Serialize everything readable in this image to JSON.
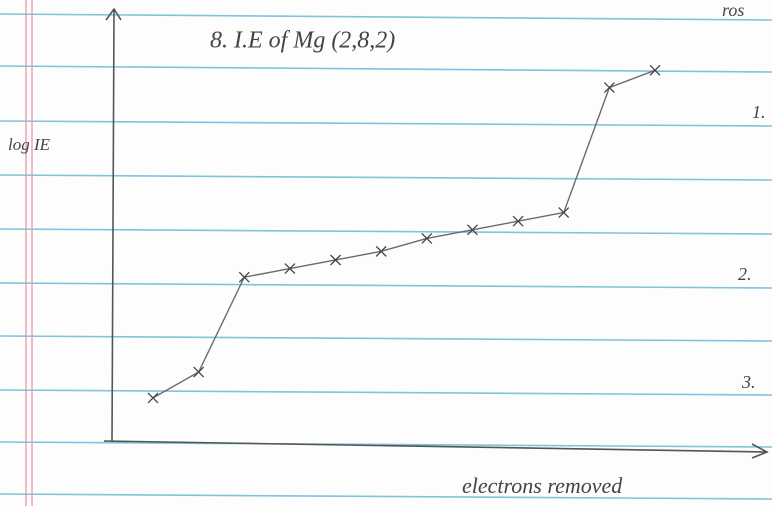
{
  "chart_data": {
    "type": "line",
    "title": "8. I.E of Mg (2,8,2)",
    "y_label": "log IE",
    "x_label": "electrons removed",
    "categories": [
      null,
      null,
      null,
      null,
      null,
      null,
      null,
      null,
      null,
      null,
      null,
      null
    ],
    "values": [
      10,
      16,
      38,
      40,
      42,
      44,
      47,
      49,
      51,
      53,
      82,
      86
    ],
    "color": "#6b6b6b",
    "ylim": [
      0,
      100
    ],
    "annotations": [
      "ros",
      "1.",
      "2.",
      "3."
    ]
  }
}
